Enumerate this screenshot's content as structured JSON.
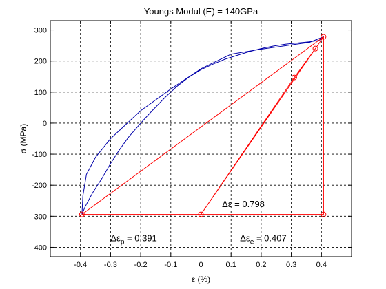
{
  "chart_data": {
    "type": "line",
    "title": "Youngs Modul (E) = 140GPa",
    "xlabel": "ε (%)",
    "ylabel": "σ (MPa)",
    "xlim": [
      -0.5,
      0.5
    ],
    "ylim": [
      -430,
      330
    ],
    "grid": true,
    "x_ticks": [
      -0.4,
      -0.3,
      -0.2,
      -0.1,
      0,
      0.1,
      0.2,
      0.3,
      0.4
    ],
    "x_tick_labels": [
      "-0.4",
      "-0.3",
      "-0.2",
      "-0.1",
      "0",
      "0.1",
      "0.2",
      "0.3",
      "0.4"
    ],
    "y_ticks": [
      -400,
      -300,
      -200,
      -100,
      0,
      100,
      200,
      300
    ],
    "y_tick_labels": [
      "-400",
      "-300",
      "-200",
      "-100",
      "0",
      "100",
      "200",
      "300"
    ],
    "series": [
      {
        "style": "hysteresis-loop",
        "color": "#0000aa",
        "x": [
          -0.395,
          -0.385,
          -0.36,
          -0.33,
          -0.3,
          -0.27,
          -0.24,
          -0.2,
          -0.16,
          -0.12,
          -0.08,
          -0.04,
          0,
          0.04,
          0.08,
          0.12,
          0.16,
          0.2,
          0.24,
          0.28,
          0.32,
          0.36,
          0.39,
          0.405,
          0.407,
          0.36,
          0.3,
          0.2,
          0.1,
          0,
          -0.1,
          -0.2,
          -0.3,
          -0.35,
          -0.38,
          -0.392,
          -0.395
        ],
        "y": [
          -294,
          -270,
          -225,
          -180,
          -130,
          -85,
          -45,
          0,
          42,
          82,
          118,
          148,
          172,
          190,
          206,
          218,
          230,
          240,
          248,
          254,
          258,
          262,
          266,
          272,
          278,
          260,
          252,
          238,
          222,
          175,
          110,
          40,
          -50,
          -110,
          -165,
          -235,
          -294
        ]
      },
      {
        "style": "elastic-unload-and-triangles",
        "color": "#ff0000",
        "x": [
          0,
          0.407,
          0.407,
          -0.395,
          0.407,
          0.38,
          0.31,
          0
        ],
        "y": [
          -294,
          278,
          -294,
          -294,
          278,
          240,
          147,
          -294
        ]
      }
    ],
    "markers": [
      {
        "x": -0.395,
        "y": -294
      },
      {
        "x": 0,
        "y": -294
      },
      {
        "x": 0.407,
        "y": -294
      },
      {
        "x": 0.407,
        "y": 278
      },
      {
        "x": 0.38,
        "y": 240
      },
      {
        "x": 0.31,
        "y": 147
      }
    ],
    "annotations": [
      {
        "base": "Δε",
        "sub": "",
        "rest": " = 0.798",
        "x": 0.07,
        "y": -270
      },
      {
        "base": "Δε",
        "sub": "p",
        "rest": " = 0.391",
        "x": -0.3,
        "y": -380
      },
      {
        "base": "Δε",
        "sub": "e",
        "rest": " = 0.407",
        "x": 0.13,
        "y": -380
      }
    ]
  }
}
